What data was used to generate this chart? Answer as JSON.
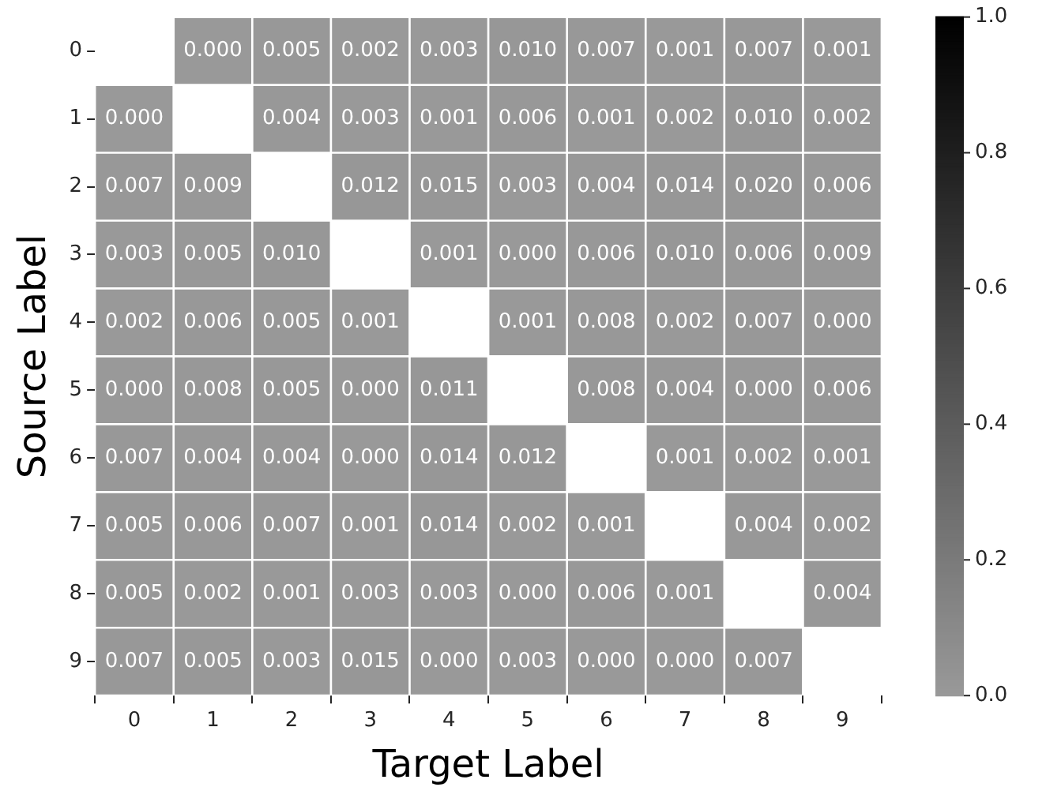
{
  "chart_data": {
    "type": "heatmap",
    "xlabel": "Target Label",
    "ylabel": "Source Label",
    "categories": [
      "0",
      "1",
      "2",
      "3",
      "4",
      "5",
      "6",
      "7",
      "8",
      "9"
    ],
    "y_categories": [
      "0",
      "1",
      "2",
      "3",
      "4",
      "5",
      "6",
      "7",
      "8",
      "9"
    ],
    "cells": [
      [
        null,
        0.0,
        0.005,
        0.002,
        0.003,
        0.01,
        0.007,
        0.001,
        0.007,
        0.001
      ],
      [
        0.0,
        null,
        0.004,
        0.003,
        0.001,
        0.006,
        0.001,
        0.002,
        0.01,
        0.002
      ],
      [
        0.007,
        0.009,
        null,
        0.012,
        0.015,
        0.003,
        0.004,
        0.014,
        0.02,
        0.006
      ],
      [
        0.003,
        0.005,
        0.01,
        null,
        0.001,
        0.0,
        0.006,
        0.01,
        0.006,
        0.009
      ],
      [
        0.002,
        0.006,
        0.005,
        0.001,
        null,
        0.001,
        0.008,
        0.002,
        0.007,
        0.0
      ],
      [
        0.0,
        0.008,
        0.005,
        0.0,
        0.011,
        null,
        0.008,
        0.004,
        0.0,
        0.006
      ],
      [
        0.007,
        0.004,
        0.004,
        0.0,
        0.014,
        0.012,
        null,
        0.001,
        0.002,
        0.001
      ],
      [
        0.005,
        0.006,
        0.007,
        0.001,
        0.014,
        0.002,
        0.001,
        null,
        0.004,
        0.002
      ],
      [
        0.005,
        0.002,
        0.001,
        0.003,
        0.003,
        0.0,
        0.006,
        0.001,
        null,
        0.004
      ],
      [
        0.007,
        0.005,
        0.003,
        0.015,
        0.0,
        0.003,
        0.0,
        0.0,
        0.007,
        null
      ]
    ],
    "cell_labels": [
      [
        null,
        "0.000",
        "0.005",
        "0.002",
        "0.003",
        "0.010",
        "0.007",
        "0.001",
        "0.007",
        "0.001"
      ],
      [
        "0.000",
        null,
        "0.004",
        "0.003",
        "0.001",
        "0.006",
        "0.001",
        "0.002",
        "0.010",
        "0.002"
      ],
      [
        "0.007",
        "0.009",
        null,
        "0.012",
        "0.015",
        "0.003",
        "0.004",
        "0.014",
        "0.020",
        "0.006"
      ],
      [
        "0.003",
        "0.005",
        "0.010",
        null,
        "0.001",
        "0.000",
        "0.006",
        "0.010",
        "0.006",
        "0.009"
      ],
      [
        "0.002",
        "0.006",
        "0.005",
        "0.001",
        null,
        "0.001",
        "0.008",
        "0.002",
        "0.007",
        "0.000"
      ],
      [
        "0.000",
        "0.008",
        "0.005",
        "0.000",
        "0.011",
        null,
        "0.008",
        "0.004",
        "0.000",
        "0.006"
      ],
      [
        "0.007",
        "0.004",
        "0.004",
        "0.000",
        "0.014",
        "0.012",
        null,
        "0.001",
        "0.002",
        "0.001"
      ],
      [
        "0.005",
        "0.006",
        "0.007",
        "0.001",
        "0.014",
        "0.002",
        "0.001",
        null,
        "0.004",
        "0.002"
      ],
      [
        "0.005",
        "0.002",
        "0.001",
        "0.003",
        "0.003",
        "0.000",
        "0.006",
        "0.001",
        null,
        "0.004"
      ],
      [
        "0.007",
        "0.005",
        "0.003",
        "0.015",
        "0.000",
        "0.003",
        "0.000",
        "0.000",
        "0.007",
        null
      ]
    ],
    "clim": [
      0,
      1
    ],
    "cticks": [
      {
        "value": 0,
        "label": "0.0"
      },
      0.2,
      0.4,
      0.6,
      0.8,
      {
        "value": 1,
        "label": "1.0"
      }
    ]
  }
}
